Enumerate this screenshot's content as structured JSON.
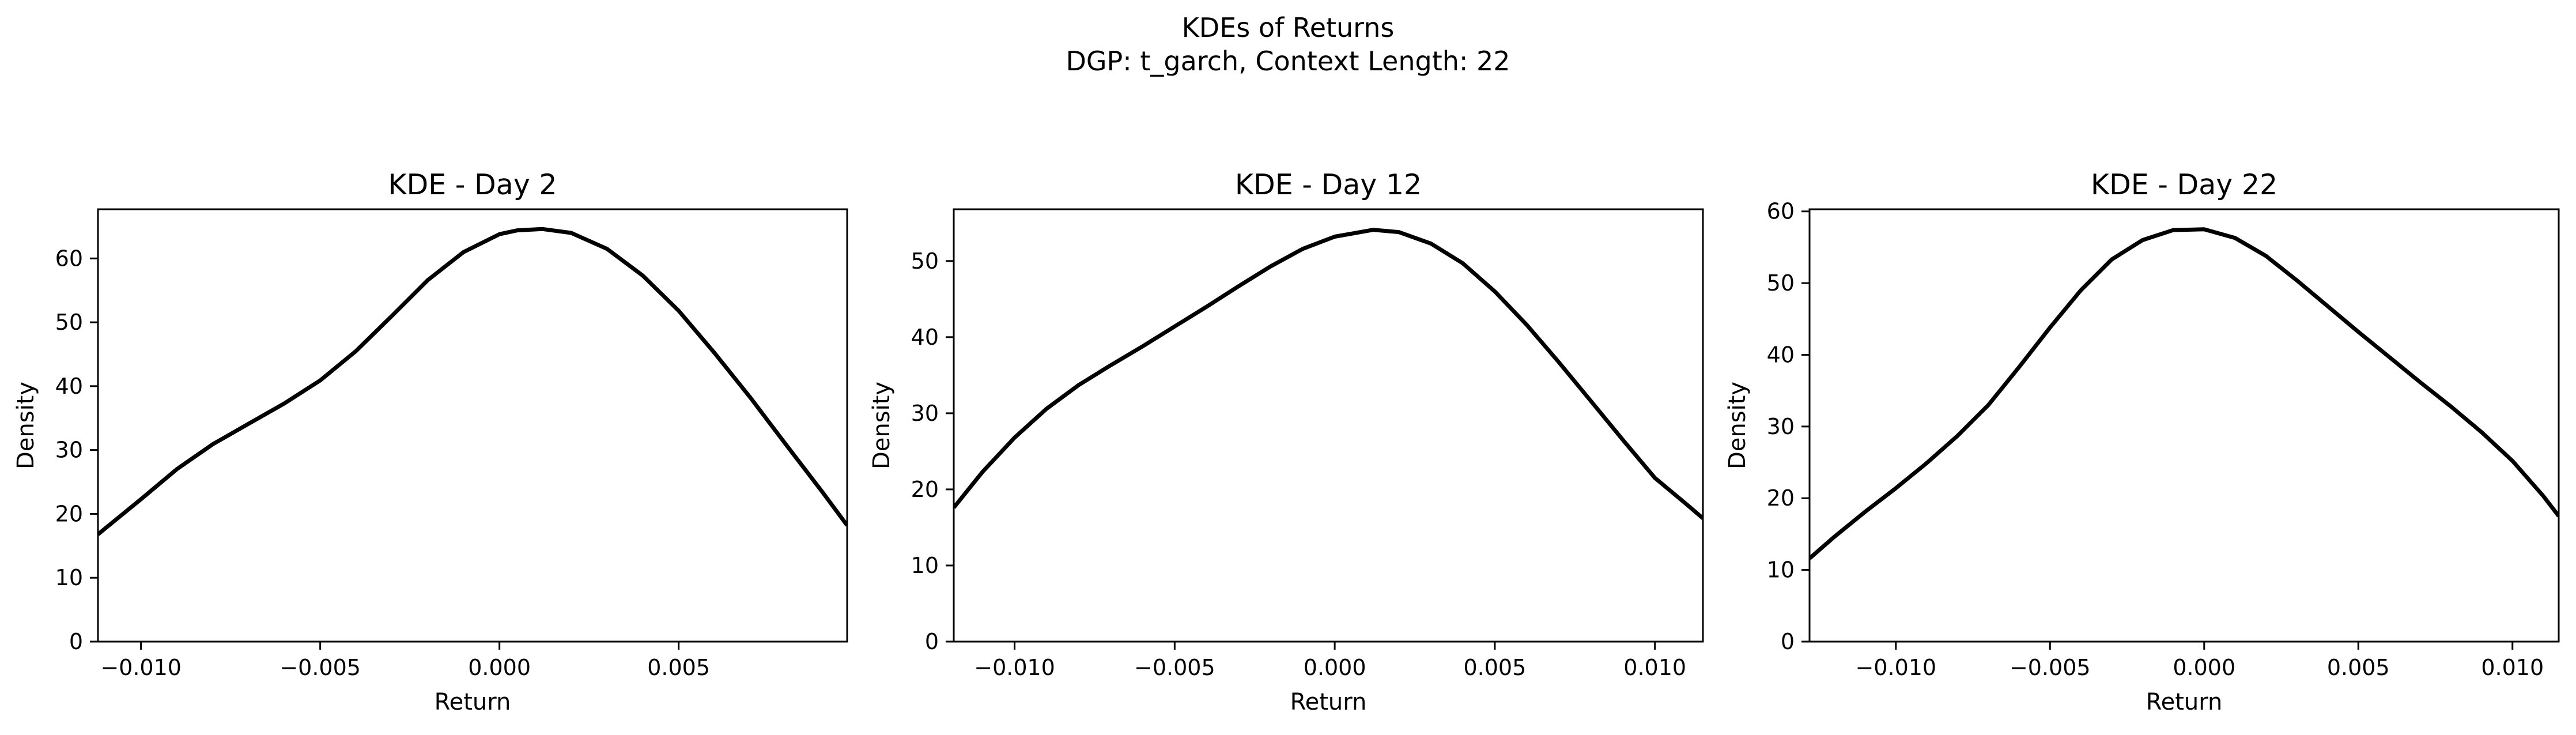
{
  "figure": {
    "title_line1": "KDEs of Returns",
    "title_line2": "DGP: t_garch, Context Length: 22"
  },
  "chart_data": [
    {
      "type": "line",
      "title": "KDE - Day 2",
      "xlabel": "Return",
      "ylabel": "Density",
      "xlim": [
        -0.0112,
        0.0097
      ],
      "ylim": [
        0,
        67.7
      ],
      "xticks": [
        -0.01,
        -0.005,
        0.0,
        0.005
      ],
      "xtick_labels": [
        "−0.010",
        "−0.005",
        "0.000",
        "0.005"
      ],
      "yticks": [
        0,
        10,
        20,
        30,
        40,
        50,
        60
      ],
      "ytick_labels": [
        "0",
        "10",
        "20",
        "30",
        "40",
        "50",
        "60"
      ],
      "grid": false,
      "series": [
        {
          "color": "#000000",
          "x": [
            -0.0112,
            -0.01,
            -0.009,
            -0.008,
            -0.007,
            -0.006,
            -0.005,
            -0.004,
            -0.003,
            -0.002,
            -0.001,
            0.0,
            0.0005,
            0.0012,
            0.002,
            0.003,
            0.004,
            0.005,
            0.006,
            0.007,
            0.008,
            0.009,
            0.0097
          ],
          "y": [
            16.8,
            22.3,
            27.0,
            30.9,
            34.1,
            37.3,
            40.9,
            45.5,
            51.0,
            56.6,
            61.0,
            63.8,
            64.4,
            64.6,
            64.0,
            61.5,
            57.3,
            51.8,
            45.2,
            38.2,
            30.8,
            23.5,
            18.2
          ]
        }
      ]
    },
    {
      "type": "line",
      "title": "KDE - Day 12",
      "xlabel": "Return",
      "ylabel": "Density",
      "xlim": [
        -0.0119,
        0.0115
      ],
      "ylim": [
        0,
        56.8
      ],
      "xticks": [
        -0.01,
        -0.005,
        0.0,
        0.005,
        0.01
      ],
      "xtick_labels": [
        "−0.010",
        "−0.005",
        "0.000",
        "0.005",
        "0.010"
      ],
      "yticks": [
        0,
        10,
        20,
        30,
        40,
        50
      ],
      "ytick_labels": [
        "0",
        "10",
        "20",
        "30",
        "40",
        "50"
      ],
      "grid": false,
      "series": [
        {
          "color": "#000000",
          "x": [
            -0.0119,
            -0.011,
            -0.01,
            -0.009,
            -0.008,
            -0.007,
            -0.006,
            -0.005,
            -0.004,
            -0.003,
            -0.002,
            -0.001,
            0.0,
            0.0012,
            0.002,
            0.003,
            0.004,
            0.005,
            0.006,
            0.007,
            0.008,
            0.009,
            0.01,
            0.011,
            0.0115
          ],
          "y": [
            17.6,
            22.3,
            26.8,
            30.6,
            33.7,
            36.3,
            38.8,
            41.4,
            44.0,
            46.7,
            49.3,
            51.6,
            53.2,
            54.1,
            53.8,
            52.3,
            49.7,
            46.0,
            41.6,
            36.7,
            31.6,
            26.5,
            21.5,
            18.0,
            16.2
          ]
        }
      ]
    },
    {
      "type": "line",
      "title": "KDE - Day 22",
      "xlabel": "Return",
      "ylabel": "Density",
      "xlim": [
        -0.0128,
        0.0115
      ],
      "ylim": [
        0,
        60.3
      ],
      "xticks": [
        -0.01,
        -0.005,
        0.0,
        0.005,
        0.01
      ],
      "xtick_labels": [
        "−0.010",
        "−0.005",
        "0.000",
        "0.005",
        "0.010"
      ],
      "yticks": [
        0,
        10,
        20,
        30,
        40,
        50,
        60
      ],
      "ytick_labels": [
        "0",
        "10",
        "20",
        "30",
        "40",
        "50",
        "60"
      ],
      "grid": false,
      "series": [
        {
          "color": "#000000",
          "x": [
            -0.0128,
            -0.012,
            -0.011,
            -0.01,
            -0.009,
            -0.008,
            -0.007,
            -0.006,
            -0.005,
            -0.004,
            -0.003,
            -0.002,
            -0.001,
            0.0,
            0.001,
            0.002,
            0.003,
            0.004,
            0.005,
            0.006,
            0.007,
            0.008,
            0.009,
            0.01,
            0.011,
            0.0115
          ],
          "y": [
            11.6,
            14.6,
            18.1,
            21.4,
            24.9,
            28.7,
            33.0,
            38.3,
            43.8,
            49.0,
            53.3,
            56.0,
            57.4,
            57.5,
            56.3,
            53.8,
            50.4,
            46.8,
            43.2,
            39.7,
            36.2,
            32.8,
            29.2,
            25.2,
            20.3,
            17.5
          ]
        }
      ]
    }
  ]
}
